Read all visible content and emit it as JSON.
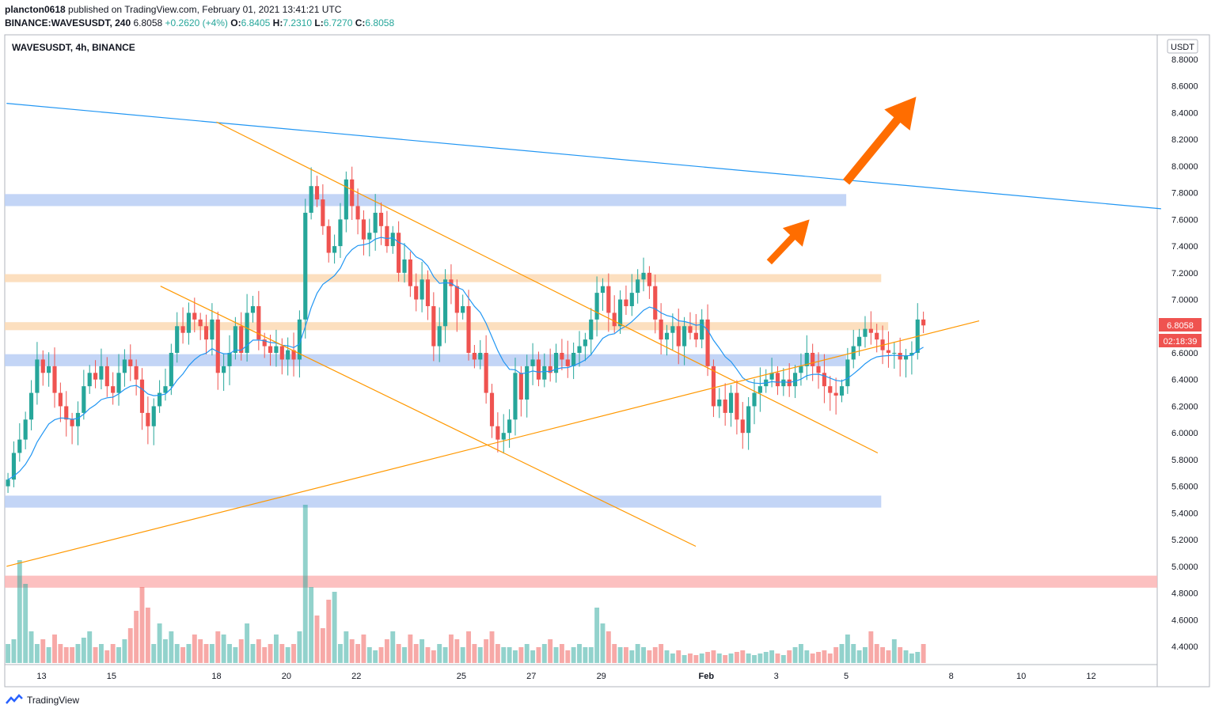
{
  "header": {
    "publisher": "plancton0618",
    "published_text": "published on TradingView.com, February 01, 2021 13:41:21 UTC",
    "symbol_line": "BINANCE:WAVESUSDT, 240",
    "last": "6.8058",
    "change": "+0.2620 (+4%)",
    "o_label": "O:",
    "o": "6.8405",
    "h_label": "H:",
    "h": "7.2310",
    "l_label": "L:",
    "l": "6.7270",
    "c_label": "C:",
    "c": "6.8058"
  },
  "chart_title": "WAVESUSDT, 4h, BINANCE",
  "currency_label": "USDT",
  "price_badge": "6.8058",
  "countdown_badge": "02:18:39",
  "footer_brand": "TradingView",
  "colors": {
    "up": "#26a69a",
    "down": "#ef5350",
    "ma": "#2196f3",
    "trend_blue": "#2196f3",
    "trend_orange": "#ff9800",
    "arrow": "#ff6d00",
    "zone_blue": "#b8cef5",
    "zone_orange": "#fcd9b4",
    "zone_red": "#fbb5b5"
  },
  "chart_data": {
    "type": "candlestick",
    "title": "WAVESUSDT, 4h, BINANCE",
    "ylabel": "USDT",
    "ylim": [
      4.3,
      8.95
    ],
    "y_ticks": [
      "8.8000",
      "8.6000",
      "8.4000",
      "8.2000",
      "8.0000",
      "7.8000",
      "7.6000",
      "7.4000",
      "7.2000",
      "7.0000",
      "6.8000",
      "6.6000",
      "6.4000",
      "6.2000",
      "6.0000",
      "5.8000",
      "5.6000",
      "5.4000",
      "5.2000",
      "5.0000",
      "4.8000",
      "4.6000",
      "4.4000"
    ],
    "x_ticks": [
      {
        "label": "13",
        "day": 13
      },
      {
        "label": "15",
        "day": 15
      },
      {
        "label": "18",
        "day": 18
      },
      {
        "label": "20",
        "day": 20
      },
      {
        "label": "22",
        "day": 22
      },
      {
        "label": "25",
        "day": 25
      },
      {
        "label": "27",
        "day": 27
      },
      {
        "label": "29",
        "day": 29
      },
      {
        "label": "Feb",
        "day": 32
      },
      {
        "label": "3",
        "day": 34
      },
      {
        "label": "5",
        "day": 36
      },
      {
        "label": "8",
        "day": 39
      },
      {
        "label": "10",
        "day": 41
      },
      {
        "label": "12",
        "day": 43
      }
    ],
    "candles_start_day": 12.04,
    "candles_per_day": 6,
    "closes": [
      5.65,
      5.85,
      5.95,
      6.1,
      6.3,
      6.55,
      6.45,
      6.5,
      6.3,
      6.2,
      6.1,
      6.05,
      6.15,
      6.35,
      6.45,
      6.4,
      6.5,
      6.35,
      6.3,
      6.45,
      6.55,
      6.5,
      6.4,
      6.15,
      6.05,
      6.2,
      6.3,
      6.35,
      6.6,
      6.8,
      6.75,
      6.9,
      6.85,
      6.8,
      6.7,
      6.85,
      6.45,
      6.5,
      6.6,
      6.8,
      6.6,
      6.9,
      6.95,
      6.7,
      6.65,
      6.6,
      6.65,
      6.55,
      6.62,
      6.55,
      6.85,
      7.65,
      7.85,
      7.75,
      7.55,
      7.35,
      7.4,
      7.6,
      7.9,
      7.7,
      7.6,
      7.45,
      7.5,
      7.65,
      7.55,
      7.4,
      7.5,
      7.2,
      7.3,
      7.1,
      7.0,
      7.15,
      6.95,
      6.65,
      6.8,
      7.15,
      7.1,
      6.9,
      6.95,
      6.6,
      6.55,
      6.6,
      6.3,
      6.05,
      5.95,
      6.0,
      6.1,
      6.45,
      6.25,
      6.5,
      6.55,
      6.4,
      6.5,
      6.45,
      6.6,
      6.55,
      6.5,
      6.6,
      6.65,
      6.7,
      6.85,
      7.05,
      7.1,
      6.9,
      6.8,
      7.0,
      6.95,
      7.05,
      7.15,
      7.2,
      7.1,
      6.85,
      6.7,
      6.75,
      6.8,
      6.65,
      6.8,
      6.75,
      6.7,
      6.85,
      6.5,
      6.2,
      6.25,
      6.15,
      6.3,
      6.1,
      6.0,
      6.2,
      6.3,
      6.35,
      6.4,
      6.45,
      6.35,
      6.4,
      6.35,
      6.45,
      6.5,
      6.6,
      6.5,
      6.45,
      6.35,
      6.3,
      6.28,
      6.35,
      6.55,
      6.65,
      6.72,
      6.78,
      6.75,
      6.7,
      6.62,
      6.6,
      6.6,
      6.55,
      6.58,
      6.6,
      6.85,
      6.8058
    ],
    "volume_ylim": [
      0,
      1
    ],
    "volumes": [
      0.12,
      0.15,
      0.65,
      0.5,
      0.2,
      0.12,
      0.15,
      0.1,
      0.18,
      0.12,
      0.1,
      0.1,
      0.12,
      0.16,
      0.2,
      0.1,
      0.12,
      0.08,
      0.12,
      0.1,
      0.15,
      0.22,
      0.33,
      0.48,
      0.35,
      0.12,
      0.25,
      0.15,
      0.2,
      0.12,
      0.1,
      0.12,
      0.18,
      0.15,
      0.12,
      0.12,
      0.2,
      0.18,
      0.12,
      0.1,
      0.15,
      0.25,
      0.12,
      0.15,
      0.1,
      0.12,
      0.18,
      0.12,
      0.1,
      0.12,
      0.2,
      1.0,
      0.48,
      0.3,
      0.22,
      0.4,
      0.45,
      0.12,
      0.2,
      0.15,
      0.12,
      0.18,
      0.1,
      0.08,
      0.1,
      0.15,
      0.2,
      0.12,
      0.1,
      0.18,
      0.12,
      0.15,
      0.1,
      0.08,
      0.12,
      0.1,
      0.18,
      0.15,
      0.1,
      0.2,
      0.12,
      0.1,
      0.15,
      0.2,
      0.12,
      0.1,
      0.1,
      0.08,
      0.1,
      0.12,
      0.08,
      0.1,
      0.12,
      0.15,
      0.1,
      0.12,
      0.08,
      0.1,
      0.12,
      0.1,
      0.1,
      0.35,
      0.25,
      0.2,
      0.12,
      0.1,
      0.1,
      0.08,
      0.12,
      0.1,
      0.08,
      0.1,
      0.12,
      0.08,
      0.06,
      0.08,
      0.05,
      0.06,
      0.05,
      0.06,
      0.07,
      0.08,
      0.06,
      0.05,
      0.06,
      0.07,
      0.08,
      0.06,
      0.05,
      0.06,
      0.07,
      0.08,
      0.06,
      0.05,
      0.08,
      0.1,
      0.12,
      0.08,
      0.06,
      0.07,
      0.08,
      0.06,
      0.1,
      0.12,
      0.18,
      0.12,
      0.08,
      0.1,
      0.2,
      0.12,
      0.1,
      0.08,
      0.15,
      0.1,
      0.08,
      0.06,
      0.07,
      0.12,
      0.25,
      0.3
    ],
    "zones": [
      {
        "color": "blue",
        "y_top": 7.79,
        "y_bottom": 7.7,
        "day_end": 36
      },
      {
        "color": "orange",
        "y_top": 7.19,
        "y_bottom": 7.13,
        "day_end": 37
      },
      {
        "color": "orange",
        "y_top": 6.83,
        "y_bottom": 6.77,
        "day_end": 37.2
      },
      {
        "color": "blue",
        "y_top": 6.59,
        "y_bottom": 6.5,
        "day_end": 36
      },
      {
        "color": "blue",
        "y_top": 5.53,
        "y_bottom": 5.44,
        "day_end": 37
      },
      {
        "color": "red",
        "y_top": 4.93,
        "y_bottom": 4.84,
        "day_end": 45
      }
    ],
    "trendlines": [
      {
        "color": "blue",
        "from": {
          "day": 12.0,
          "y": 8.47
        },
        "to": {
          "day": 45.0,
          "y": 7.68
        }
      },
      {
        "color": "orange",
        "from": {
          "day": 18.0,
          "y": 8.33
        },
        "to": {
          "day": 36.9,
          "y": 5.85
        }
      },
      {
        "color": "orange",
        "from": {
          "day": 16.4,
          "y": 7.1
        },
        "to": {
          "day": 31.7,
          "y": 5.15
        }
      },
      {
        "color": "orange",
        "from": {
          "day": 12.0,
          "y": 5.0
        },
        "to": {
          "day": 39.8,
          "y": 6.84
        }
      }
    ],
    "arrows": [
      {
        "from": {
          "day": 36.0,
          "y": 7.88
        },
        "to": {
          "day": 38.0,
          "y": 8.52
        }
      },
      {
        "from": {
          "day": 33.8,
          "y": 7.28
        },
        "to": {
          "day": 34.95,
          "y": 7.6
        }
      }
    ]
  }
}
